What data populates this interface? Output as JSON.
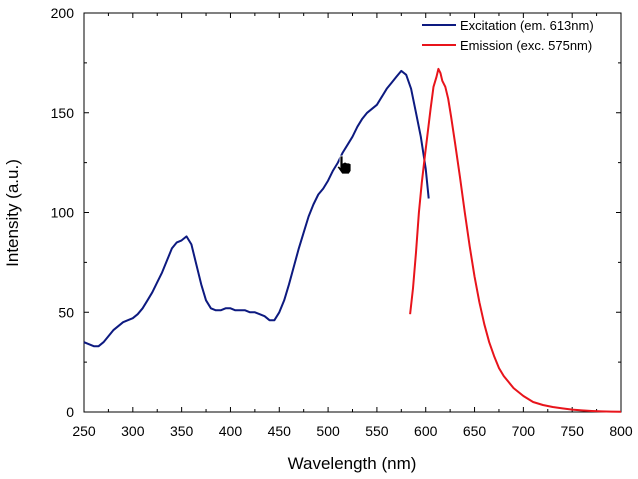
{
  "chart_data": {
    "type": "line",
    "title": "",
    "xlabel": "Wavelength (nm)",
    "ylabel": "Intensity (a.u.)",
    "xlim": [
      250,
      800
    ],
    "ylim": [
      0,
      200
    ],
    "x_ticks": [
      250,
      300,
      350,
      400,
      450,
      500,
      550,
      600,
      650,
      700,
      750,
      800
    ],
    "y_ticks": [
      0,
      50,
      100,
      150,
      200
    ],
    "grid": false,
    "legend_position": "top-right",
    "series": [
      {
        "name": "Excitation (em. 613nm)",
        "color": "#0d1a80",
        "x": [
          250,
          255,
          260,
          265,
          270,
          275,
          280,
          285,
          290,
          295,
          300,
          305,
          310,
          315,
          320,
          325,
          330,
          335,
          340,
          345,
          350,
          355,
          360,
          365,
          370,
          375,
          380,
          385,
          390,
          395,
          400,
          405,
          410,
          415,
          420,
          425,
          430,
          435,
          440,
          445,
          450,
          455,
          460,
          465,
          470,
          475,
          480,
          485,
          490,
          495,
          500,
          505,
          510,
          515,
          520,
          525,
          530,
          535,
          540,
          545,
          550,
          555,
          560,
          565,
          570,
          575,
          580,
          585,
          590,
          595,
          600,
          603
        ],
        "y": [
          35,
          34,
          33,
          33,
          35,
          38,
          41,
          43,
          45,
          46,
          47,
          49,
          52,
          56,
          60,
          65,
          70,
          76,
          82,
          85,
          86,
          88,
          84,
          74,
          64,
          56,
          52,
          51,
          51,
          52,
          52,
          51,
          51,
          51,
          50,
          50,
          49,
          48,
          46,
          46,
          50,
          56,
          64,
          73,
          82,
          90,
          98,
          104,
          109,
          112,
          116,
          121,
          125,
          130,
          134,
          138,
          143,
          147,
          150,
          152,
          154,
          158,
          162,
          165,
          168,
          171,
          169,
          162,
          150,
          138,
          122,
          107
        ]
      },
      {
        "name": "Emission (exc. 575nm)",
        "color": "#e8141b",
        "x": [
          584,
          587,
          590,
          593,
          596,
          599,
          602,
          605,
          608,
          611,
          613,
          615,
          617,
          620,
          623,
          626,
          630,
          635,
          640,
          645,
          650,
          655,
          660,
          665,
          670,
          675,
          680,
          690,
          700,
          710,
          720,
          730,
          740,
          750,
          760,
          770,
          780,
          790,
          800
        ],
        "y": [
          49,
          62,
          80,
          100,
          115,
          128,
          140,
          152,
          163,
          168,
          172,
          170,
          166,
          163,
          157,
          148,
          135,
          118,
          100,
          83,
          68,
          55,
          44,
          35,
          28,
          22,
          18,
          12,
          8,
          5,
          3.5,
          2.5,
          1.8,
          1.2,
          0.8,
          0.5,
          0.3,
          0.2,
          0.1
        ]
      }
    ]
  }
}
